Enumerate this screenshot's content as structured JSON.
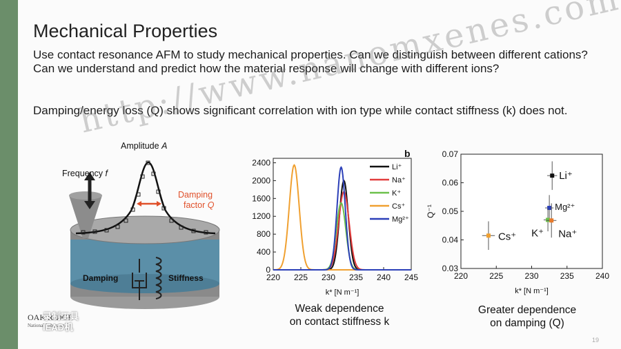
{
  "slide": {
    "title": "Mechanical Properties",
    "intro": "Use contact resonance AFM to study mechanical properties. Can we distinguish between different cations? Can we understand and predict how the material response will change with different ions?",
    "finding": "Damping/energy loss (Q) shows significant correlation with ion type while contact stiffness (k) does not.",
    "watermark": "http://www.nanomxenes.com",
    "logo_text": "OAK RIDGE",
    "logo_sub": "National Laboratory",
    "badge_line1": "录制工具",
    "badge_line2": "IEAD机",
    "page_number": "19"
  },
  "schematic": {
    "amplitude_label": "Amplitude",
    "amplitude_var": "A",
    "frequency_label": "Frequency",
    "frequency_var": "f",
    "damping_factor_label": "Damping",
    "damping_factor_label2": "factor",
    "damping_factor_var": "Q",
    "damping_label": "Damping",
    "stiffness_label": "Stiffness"
  },
  "captions": {
    "middle_line1": "Weak dependence",
    "middle_line2": "on contact stiffness k",
    "right_line1": "Greater dependence",
    "right_line2": "on damping (Q)"
  },
  "chart_data": [
    {
      "type": "line",
      "panel_letter": "b",
      "xlabel": "k* [N m⁻¹]",
      "ylabel": "",
      "xlim": [
        220,
        245
      ],
      "ylim": [
        0,
        2500
      ],
      "xticks": [
        220,
        225,
        230,
        235,
        240,
        245
      ],
      "yticks": [
        0,
        400,
        800,
        1200,
        1600,
        2000,
        2400
      ],
      "legend_position": "top-right",
      "series": [
        {
          "name": "Li⁺",
          "color": "#111111",
          "center": 232.8,
          "peak": 2000,
          "sigma": 0.8
        },
        {
          "name": "Na⁺",
          "color": "#e23c3c",
          "center": 232.8,
          "peak": 1750,
          "sigma": 0.95
        },
        {
          "name": "K⁺",
          "color": "#6cc04a",
          "center": 232.3,
          "peak": 1500,
          "sigma": 0.85
        },
        {
          "name": "Cs⁺",
          "color": "#f0a030",
          "center": 223.8,
          "peak": 2350,
          "sigma": 0.9
        },
        {
          "name": "Mg²⁺",
          "color": "#2b3fb8",
          "center": 232.3,
          "peak": 2300,
          "sigma": 0.75
        }
      ]
    },
    {
      "type": "scatter",
      "xlabel": "k* [N m⁻¹]",
      "ylabel": "Q⁻¹",
      "xlim": [
        220,
        240
      ],
      "ylim": [
        0.03,
        0.07
      ],
      "xticks": [
        220,
        225,
        230,
        235,
        240
      ],
      "yticks": [
        0.03,
        0.04,
        0.05,
        0.06,
        0.07
      ],
      "grid": false,
      "points": [
        {
          "label": "Li⁺",
          "x": 232.9,
          "y": 0.0625,
          "xerr": 0.7,
          "yerr": 0.005,
          "color": "#111111"
        },
        {
          "label": "Mg²⁺",
          "x": 232.5,
          "y": 0.0512,
          "xerr": 0.6,
          "yerr": 0.0045,
          "color": "#2b3fb8"
        },
        {
          "label": "K⁺",
          "x": 232.3,
          "y": 0.047,
          "xerr": 0.6,
          "yerr": 0.004,
          "color": "#6cc04a"
        },
        {
          "label": "Na⁺",
          "x": 232.8,
          "y": 0.0468,
          "xerr": 0.7,
          "yerr": 0.006,
          "color": "#e87a2a"
        },
        {
          "label": "Cs⁺",
          "x": 223.9,
          "y": 0.0415,
          "xerr": 0.9,
          "yerr": 0.005,
          "color": "#f0a030"
        }
      ]
    }
  ]
}
